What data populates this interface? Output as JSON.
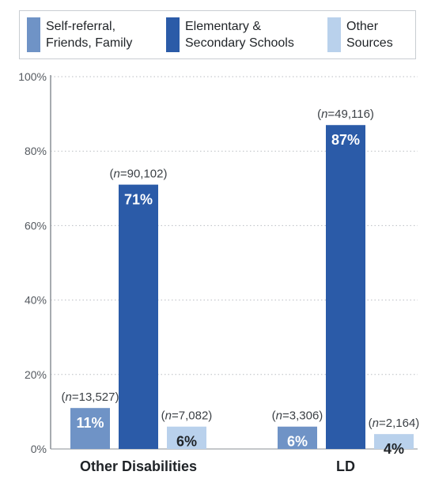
{
  "chart_data": {
    "type": "bar",
    "categories": [
      "Other Disabilities",
      "LD"
    ],
    "series": [
      {
        "name": "Self-referral, Friends, Family",
        "values": [
          11,
          6
        ],
        "n": [
          "(n=13,527)",
          "(n=3,306)"
        ],
        "labels": [
          "11%",
          "6%"
        ],
        "color": "#6f93c6",
        "label_color": "#ffffff"
      },
      {
        "name": "Elementary & Secondary Schools",
        "values": [
          71,
          87
        ],
        "n": [
          "(n=90,102)",
          "(n=49,116)"
        ],
        "labels": [
          "71%",
          "87%"
        ],
        "color": "#2b5ba8",
        "label_color": "#ffffff"
      },
      {
        "name": "Other Sources",
        "values": [
          6,
          4
        ],
        "n": [
          "(n=7,082)",
          "(n=2,164)"
        ],
        "labels": [
          "6%",
          "4%"
        ],
        "color": "#b9d1ec",
        "label_color": "#1f2327"
      }
    ],
    "legend_lines": [
      [
        "Self-referral,",
        "Friends, Family"
      ],
      [
        "Elementary &",
        "Secondary Schools"
      ],
      [
        "Other",
        "Sources"
      ]
    ],
    "yticks": [
      "0%",
      "20%",
      "40%",
      "60%",
      "80%",
      "100%"
    ],
    "ylim": [
      0,
      100
    ],
    "grid": true,
    "legend_position": "top"
  }
}
